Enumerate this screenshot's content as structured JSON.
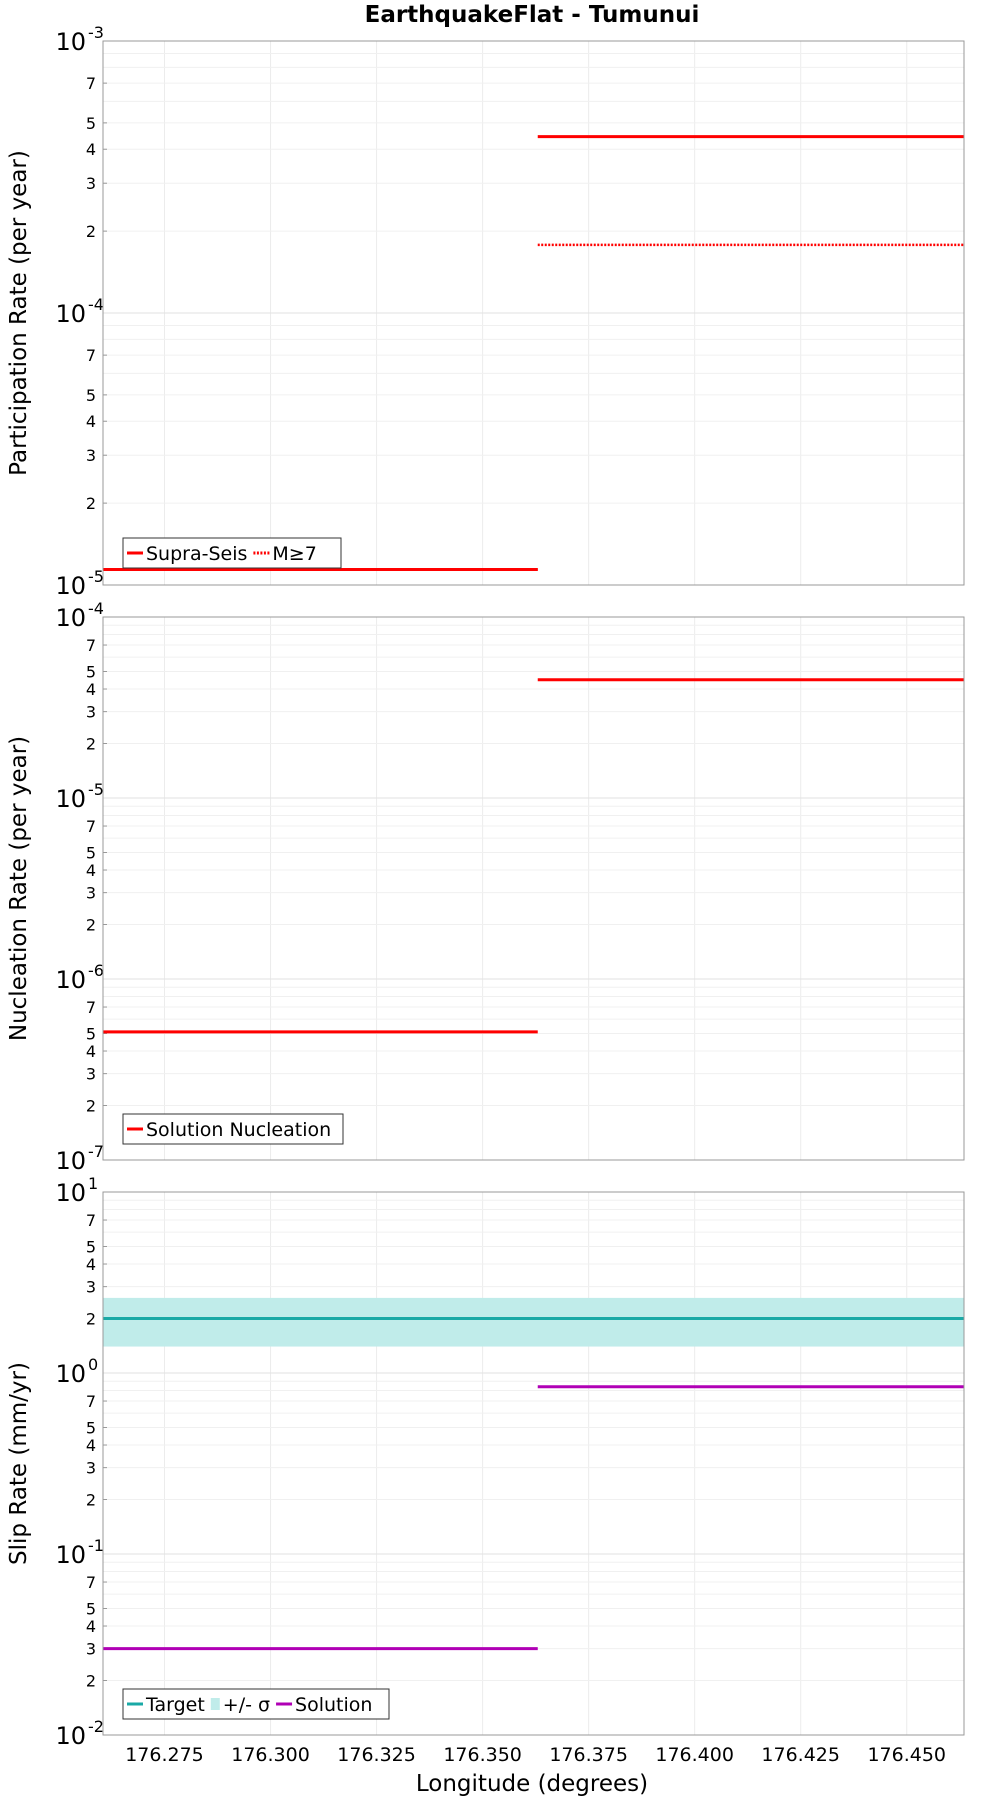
{
  "title": "EarthquakeFlat - Tumunui",
  "xlabel": "Longitude (degrees)",
  "x_ticks": [
    176.275,
    176.3,
    176.325,
    176.35,
    176.375,
    176.4,
    176.425,
    176.45
  ],
  "x_tick_labels": [
    "176.275",
    "176.300",
    "176.325",
    "176.350",
    "176.375",
    "176.400",
    "176.425",
    "176.450"
  ],
  "colors": {
    "red": "#ff0000",
    "teal": "#1aa9a6",
    "band": "#c0ecea",
    "purple": "#b000b5"
  },
  "chart_data": [
    {
      "type": "line",
      "ylabel": "Participation Rate (per year)",
      "xlim": [
        176.2605,
        176.4635
      ],
      "ylim": [
        1e-05,
        0.001
      ],
      "yscale": "log",
      "grid": true,
      "legend_position": "bottom-left",
      "series": [
        {
          "name": "Supra-Seis",
          "style": "solid",
          "color": "#ff0000",
          "segments": [
            {
              "x": [
                176.2605,
                176.363
              ],
              "y": [
                1.14e-05,
                1.14e-05
              ]
            },
            {
              "x": [
                176.363,
                176.4635
              ],
              "y": [
                0.000445,
                0.000445
              ]
            }
          ]
        },
        {
          "name": "M≥7",
          "style": "dotted",
          "color": "#ff0000",
          "segments": [
            {
              "x": [
                176.2605,
                176.363
              ],
              "y": [
                1.14e-05,
                1.14e-05
              ]
            },
            {
              "x": [
                176.363,
                176.4635
              ],
              "y": [
                0.000178,
                0.000178
              ]
            }
          ]
        }
      ]
    },
    {
      "type": "line",
      "ylabel": "Nucleation Rate (per year)",
      "xlim": [
        176.2605,
        176.4635
      ],
      "ylim": [
        1e-07,
        0.0001
      ],
      "yscale": "log",
      "grid": true,
      "legend_position": "bottom-left",
      "series": [
        {
          "name": "Solution Nucleation",
          "style": "solid",
          "color": "#ff0000",
          "segments": [
            {
              "x": [
                176.2605,
                176.363
              ],
              "y": [
                5.1e-07,
                5.1e-07
              ]
            },
            {
              "x": [
                176.363,
                176.4635
              ],
              "y": [
                4.5e-05,
                4.5e-05
              ]
            }
          ]
        }
      ]
    },
    {
      "type": "line",
      "ylabel": "Slip Rate (mm/yr)",
      "xlim": [
        176.2605,
        176.4635
      ],
      "ylim": [
        0.01,
        10
      ],
      "yscale": "log",
      "grid": true,
      "legend_position": "bottom-left",
      "series": [
        {
          "name": "Target",
          "style": "solid",
          "color": "#1aa9a6",
          "segments": [
            {
              "x": [
                176.2605,
                176.4635
              ],
              "y": [
                2.0,
                2.0
              ]
            }
          ]
        },
        {
          "name": "+/- σ",
          "style": "band",
          "color": "#c0ecea",
          "band": {
            "x": [
              176.2605,
              176.4635
            ],
            "low": 1.4,
            "high": 2.6
          }
        },
        {
          "name": "Solution",
          "style": "solid",
          "color": "#b000b5",
          "segments": [
            {
              "x": [
                176.2605,
                176.363
              ],
              "y": [
                0.03,
                0.03
              ]
            },
            {
              "x": [
                176.363,
                176.4635
              ],
              "y": [
                0.84,
                0.84
              ]
            }
          ]
        }
      ]
    }
  ]
}
